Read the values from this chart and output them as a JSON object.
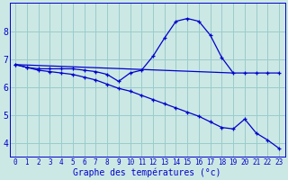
{
  "title": "Graphe des températures (°c)",
  "bg_color": "#cce8e4",
  "grid_color": "#99cccc",
  "line_color": "#0000cc",
  "xlim": [
    -0.5,
    23.5
  ],
  "ylim": [
    3.5,
    9.0
  ],
  "xticks": [
    0,
    1,
    2,
    3,
    4,
    5,
    6,
    7,
    8,
    9,
    10,
    11,
    12,
    13,
    14,
    15,
    16,
    17,
    18,
    19,
    20,
    21,
    22,
    23
  ],
  "yticks": [
    4,
    5,
    6,
    7,
    8
  ],
  "line1_x": [
    0,
    1,
    2,
    3,
    4,
    5,
    6,
    7,
    8,
    9,
    10,
    11,
    12,
    13,
    14,
    15,
    16,
    17,
    18,
    19,
    20,
    21,
    22,
    23
  ],
  "line1_y": [
    6.8,
    6.7,
    6.65,
    6.65,
    6.65,
    6.65,
    6.6,
    6.55,
    6.45,
    6.2,
    6.5,
    6.6,
    7.1,
    7.75,
    8.35,
    8.45,
    8.35,
    7.85,
    7.05,
    6.5,
    6.5,
    6.5,
    6.5,
    6.5
  ],
  "line2_x": [
    0,
    19
  ],
  "line2_y": [
    6.8,
    6.5
  ],
  "line3_x": [
    0,
    1,
    2,
    3,
    4,
    5,
    6,
    7,
    8,
    9,
    10,
    11,
    12,
    13,
    14,
    15,
    16,
    17,
    18,
    19,
    20,
    21,
    22,
    23
  ],
  "line3_y": [
    6.8,
    6.7,
    6.6,
    6.55,
    6.5,
    6.45,
    6.35,
    6.25,
    6.1,
    5.95,
    5.85,
    5.7,
    5.55,
    5.4,
    5.25,
    5.1,
    4.95,
    4.75,
    4.55,
    4.5,
    4.85,
    4.35,
    4.1,
    3.8
  ],
  "xlabel_fontsize": 7,
  "tick_fontsize": 5.5,
  "ytick_fontsize": 7
}
